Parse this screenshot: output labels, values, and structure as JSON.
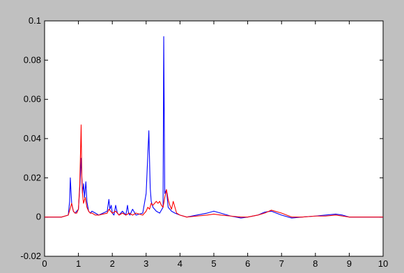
{
  "chart_data": {
    "type": "line",
    "title": "",
    "xlabel": "",
    "ylabel": "",
    "xlim": [
      0,
      10
    ],
    "ylim": [
      -0.02,
      0.1
    ],
    "grid": false,
    "legend": "none",
    "xticks": [
      0,
      1,
      2,
      3,
      4,
      5,
      6,
      7,
      8,
      9,
      10
    ],
    "xtick_labels": [
      "0",
      "1",
      "2",
      "3",
      "4",
      "5",
      "6",
      "7",
      "8",
      "9",
      "10"
    ],
    "yticks": [
      -0.02,
      0,
      0.02,
      0.04,
      0.06,
      0.08,
      0.1
    ],
    "ytick_labels": [
      "-0.02",
      "0",
      "0.02",
      "0.04",
      "0.06",
      "0.08",
      "0.1"
    ],
    "series": [
      {
        "color": "#0000ff",
        "x": [
          0,
          0.5,
          0.7,
          0.74,
          0.76,
          0.8,
          0.85,
          0.9,
          0.95,
          1.0,
          1.05,
          1.08,
          1.12,
          1.15,
          1.18,
          1.22,
          1.25,
          1.3,
          1.35,
          1.4,
          1.5,
          1.6,
          1.85,
          1.9,
          1.93,
          1.97,
          2.0,
          2.05,
          2.1,
          2.15,
          2.2,
          2.3,
          2.4,
          2.45,
          2.48,
          2.52,
          2.6,
          2.7,
          2.9,
          2.95,
          3.0,
          3.05,
          3.08,
          3.12,
          3.15,
          3.2,
          3.3,
          3.4,
          3.5,
          3.52,
          3.55,
          3.6,
          3.65,
          3.75,
          3.85,
          4.0,
          4.2,
          4.5,
          4.8,
          5.0,
          5.2,
          5.5,
          5.8,
          6.0,
          6.3,
          6.5,
          6.7,
          7.0,
          7.3,
          7.6,
          8.0,
          8.3,
          8.6,
          8.8,
          9.0,
          9.5,
          10.0
        ],
        "y": [
          0,
          0,
          0.001,
          0.008,
          0.02,
          0.007,
          0.003,
          0.002,
          0.003,
          0.004,
          0.018,
          0.03,
          0.012,
          0.017,
          0.01,
          0.018,
          0.008,
          0.003,
          0.002,
          0.003,
          0.002,
          0.001,
          0.003,
          0.009,
          0.004,
          0.006,
          0.002,
          0.001,
          0.006,
          0.002,
          0.001,
          0.003,
          0.001,
          0.006,
          0.002,
          0.001,
          0.004,
          0.001,
          0.002,
          0.007,
          0.012,
          0.032,
          0.044,
          0.015,
          0.008,
          0.005,
          0.003,
          0.002,
          0.005,
          0.092,
          0.012,
          0.014,
          0.005,
          0.003,
          0.002,
          0.001,
          0,
          0.001,
          0.002,
          0.003,
          0.002,
          0.0005,
          -0.0005,
          0,
          0.001,
          0.0025,
          0.003,
          0.001,
          -0.0005,
          0,
          0.0005,
          0.001,
          0.0015,
          0.001,
          0,
          0,
          0
        ]
      },
      {
        "color": "#ff0000",
        "x": [
          0,
          0.5,
          0.7,
          0.75,
          0.8,
          0.85,
          0.9,
          0.95,
          1.0,
          1.04,
          1.08,
          1.1,
          1.12,
          1.15,
          1.2,
          1.25,
          1.3,
          1.35,
          1.4,
          1.5,
          1.6,
          1.85,
          1.9,
          1.95,
          2.0,
          2.1,
          2.2,
          2.3,
          2.4,
          2.5,
          2.6,
          2.7,
          2.9,
          3.0,
          3.05,
          3.1,
          3.15,
          3.2,
          3.3,
          3.35,
          3.4,
          3.45,
          3.5,
          3.55,
          3.6,
          3.65,
          3.7,
          3.75,
          3.8,
          3.9,
          4.0,
          4.2,
          4.5,
          4.8,
          5.0,
          5.2,
          5.5,
          5.8,
          6.0,
          6.3,
          6.5,
          6.7,
          7.0,
          7.3,
          7.6,
          8.0,
          8.3,
          8.6,
          8.8,
          9.0,
          9.5,
          10.0
        ],
        "y": [
          0,
          0,
          0.001,
          0.004,
          0.007,
          0.003,
          0.002,
          0.002,
          0.004,
          0.017,
          0.047,
          0.02,
          0.012,
          0.007,
          0.01,
          0.005,
          0.003,
          0.002,
          0.002,
          0.001,
          0.001,
          0.002,
          0.004,
          0.003,
          0.002,
          0.003,
          0.001,
          0.002,
          0.001,
          0.002,
          0.001,
          0.002,
          0.001,
          0.003,
          0.005,
          0.004,
          0.007,
          0.006,
          0.008,
          0.007,
          0.008,
          0.006,
          0.005,
          0.01,
          0.014,
          0.009,
          0.006,
          0.004,
          0.008,
          0.002,
          0.001,
          0,
          0.0005,
          0.001,
          0.0015,
          0.001,
          0.0005,
          0,
          0,
          0.001,
          0.002,
          0.0035,
          0.002,
          0,
          0,
          0.0005,
          0.0005,
          0.001,
          0.0005,
          0,
          0,
          0
        ]
      }
    ]
  }
}
